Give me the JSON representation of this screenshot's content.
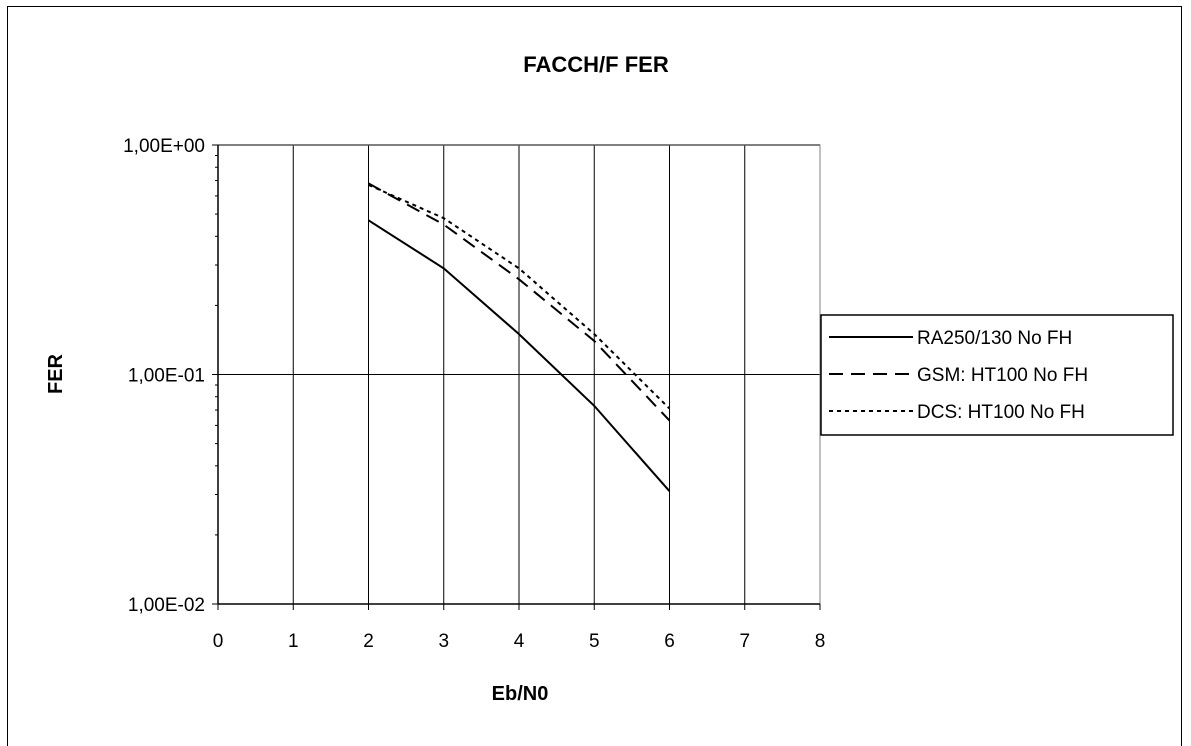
{
  "chart_data": {
    "type": "line",
    "title": "FACCH/F  FER",
    "xlabel": "Eb/N0",
    "ylabel": "FER",
    "x_ticks": [
      "0",
      "1",
      "2",
      "3",
      "4",
      "5",
      "6",
      "7",
      "8"
    ],
    "y_ticks": [
      "1,00E+00",
      "1,00E-01",
      "1,00E-02"
    ],
    "xlim": [
      0,
      8
    ],
    "ylim": [
      0.01,
      1
    ],
    "y_scale": "log",
    "grid": "vertical at each x tick, horizontal at each decade",
    "legend_position": "right",
    "x": [
      2,
      3,
      4,
      5,
      6
    ],
    "series": [
      {
        "name": "RA250/130  No FH",
        "style": "solid",
        "values": [
          0.47,
          0.29,
          0.15,
          0.073,
          0.031
        ]
      },
      {
        "name": "GSM:  HT100  No FH",
        "style": "dashed",
        "values": [
          0.68,
          0.45,
          0.26,
          0.14,
          0.063
        ]
      },
      {
        "name": "DCS:  HT100 No FH",
        "style": "dotted",
        "values": [
          0.67,
          0.48,
          0.29,
          0.15,
          0.071
        ]
      }
    ]
  }
}
